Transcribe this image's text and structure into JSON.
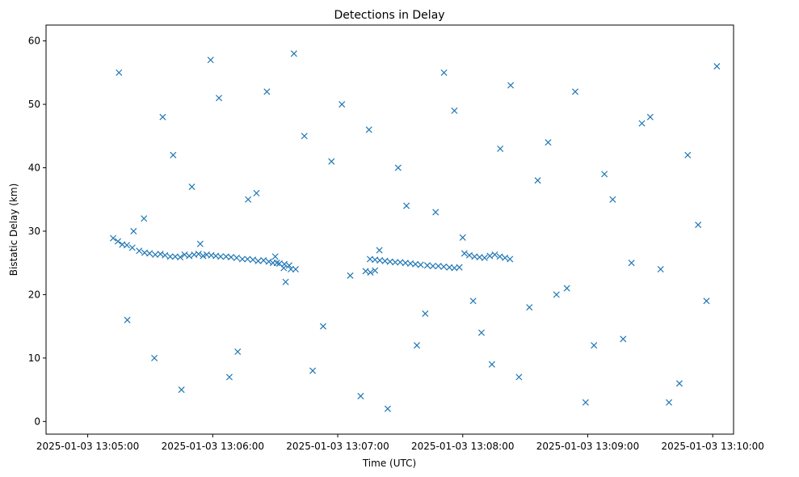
{
  "chart_data": {
    "type": "scatter",
    "title": "Detections in Delay",
    "xlabel": "Time (UTC)",
    "ylabel": "Bistatic Delay (km)",
    "marker": "x",
    "color": "#1f77b4",
    "x_unit": "seconds after 2025-01-03 13:04:40 UTC",
    "xlim": [
      0,
      330
    ],
    "ylim": [
      -2,
      62.5
    ],
    "xticks": [
      {
        "value": 20,
        "label": "2025-01-03 13:05:00"
      },
      {
        "value": 80,
        "label": "2025-01-03 13:06:00"
      },
      {
        "value": 140,
        "label": "2025-01-03 13:07:00"
      },
      {
        "value": 200,
        "label": "2025-01-03 13:08:00"
      },
      {
        "value": 260,
        "label": "2025-01-03 13:09:00"
      },
      {
        "value": 320,
        "label": "2025-01-03 13:10:00"
      }
    ],
    "yticks": [
      {
        "value": 0,
        "label": "0"
      },
      {
        "value": 10,
        "label": "10"
      },
      {
        "value": 20,
        "label": "20"
      },
      {
        "value": 30,
        "label": "30"
      },
      {
        "value": 40,
        "label": "40"
      },
      {
        "value": 50,
        "label": "50"
      },
      {
        "value": 60,
        "label": "60"
      }
    ],
    "track": [
      [
        32.2,
        28.9
      ],
      [
        34.5,
        28.4
      ],
      [
        36.6,
        27.9
      ],
      [
        38.8,
        27.8
      ],
      [
        41.4,
        27.4
      ],
      [
        44.7,
        26.9
      ],
      [
        47.3,
        26.6
      ],
      [
        49.7,
        26.5
      ],
      [
        52.4,
        26.3
      ],
      [
        54.9,
        26.4
      ],
      [
        57.1,
        26.2
      ],
      [
        59.6,
        26.0
      ],
      [
        62.0,
        26.0
      ],
      [
        64.4,
        25.9
      ],
      [
        66.5,
        26.3
      ],
      [
        68.7,
        26.1
      ],
      [
        71.1,
        26.3
      ],
      [
        73.2,
        26.4
      ],
      [
        75.4,
        26.1
      ],
      [
        77.1,
        26.3
      ],
      [
        79.3,
        26.2
      ],
      [
        81.5,
        26.1
      ],
      [
        83.8,
        26.0
      ],
      [
        86.4,
        26.0
      ],
      [
        88.8,
        25.9
      ],
      [
        91.5,
        25.8
      ],
      [
        94.2,
        25.6
      ],
      [
        96.7,
        25.6
      ],
      [
        99.3,
        25.5
      ],
      [
        101.8,
        25.3
      ],
      [
        104.4,
        25.4
      ],
      [
        106.9,
        25.2
      ],
      [
        108.9,
        25.0
      ],
      [
        110.8,
        25.0
      ],
      [
        155.5,
        25.6
      ],
      [
        157.9,
        25.5
      ],
      [
        160.2,
        25.4
      ],
      [
        162.7,
        25.3
      ],
      [
        165.1,
        25.2
      ],
      [
        167.6,
        25.1
      ],
      [
        170.0,
        25.1
      ],
      [
        172.5,
        25.0
      ],
      [
        174.9,
        24.9
      ],
      [
        177.3,
        24.8
      ],
      [
        179.8,
        24.7
      ],
      [
        183.0,
        24.6
      ],
      [
        185.7,
        24.5
      ],
      [
        188.3,
        24.5
      ],
      [
        190.9,
        24.4
      ],
      [
        193.6,
        24.3
      ],
      [
        196.0,
        24.2
      ],
      [
        198.4,
        24.3
      ],
      [
        200.8,
        26.5
      ],
      [
        203.2,
        26.2
      ],
      [
        205.7,
        26.0
      ],
      [
        208.1,
        25.9
      ],
      [
        210.5,
        25.8
      ],
      [
        213.0,
        26.1
      ],
      [
        215.4,
        26.3
      ],
      [
        217.8,
        26.0
      ],
      [
        220.3,
        25.8
      ],
      [
        222.7,
        25.6
      ],
      [
        114.1,
        24.2
      ],
      [
        117.5,
        24.0
      ],
      [
        119.8,
        24.0
      ],
      [
        153.4,
        23.7
      ],
      [
        155.7,
        23.5
      ],
      [
        157.9,
        23.8
      ],
      [
        112.0,
        24.9
      ],
      [
        114.4,
        24.8
      ],
      [
        116.7,
        24.6
      ]
    ],
    "points": [
      [
        35,
        55
      ],
      [
        42,
        30
      ],
      [
        52,
        10
      ],
      [
        61,
        42
      ],
      [
        70,
        37
      ],
      [
        79,
        57
      ],
      [
        88,
        7
      ],
      [
        97,
        35
      ],
      [
        106,
        52
      ],
      [
        115,
        22
      ],
      [
        124,
        45
      ],
      [
        133,
        15
      ],
      [
        142,
        50
      ],
      [
        151,
        4
      ],
      [
        160,
        27
      ],
      [
        169,
        40
      ],
      [
        178,
        12
      ],
      [
        187,
        33
      ],
      [
        196,
        49
      ],
      [
        205,
        19
      ],
      [
        214,
        9
      ],
      [
        223,
        53
      ],
      [
        232,
        18
      ],
      [
        241,
        44
      ],
      [
        250,
        21
      ],
      [
        259,
        3
      ],
      [
        268,
        39
      ],
      [
        277,
        13
      ],
      [
        286,
        47
      ],
      [
        295,
        24
      ],
      [
        304,
        6
      ],
      [
        313,
        31
      ],
      [
        322,
        56
      ],
      [
        39,
        16
      ],
      [
        47,
        32
      ],
      [
        56,
        48
      ],
      [
        65,
        5
      ],
      [
        74,
        28
      ],
      [
        83,
        51
      ],
      [
        92,
        11
      ],
      [
        101,
        36
      ],
      [
        110,
        26
      ],
      [
        119,
        58
      ],
      [
        128,
        8
      ],
      [
        137,
        41
      ],
      [
        146,
        23
      ],
      [
        155,
        46
      ],
      [
        164,
        2
      ],
      [
        173,
        34
      ],
      [
        182,
        17
      ],
      [
        191,
        55
      ],
      [
        200,
        29
      ],
      [
        209,
        14
      ],
      [
        218,
        43
      ],
      [
        227,
        7
      ],
      [
        236,
        38
      ],
      [
        245,
        20
      ],
      [
        254,
        52
      ],
      [
        263,
        12
      ],
      [
        272,
        35
      ],
      [
        281,
        25
      ],
      [
        290,
        48
      ],
      [
        299,
        3
      ],
      [
        308,
        42
      ],
      [
        317,
        19
      ]
    ]
  }
}
